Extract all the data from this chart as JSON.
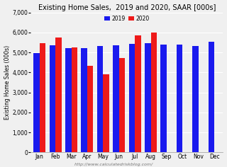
{
  "title": "Existing Home Sales,  2019 and 2020, SAAR [000s]",
  "ylabel": "Existing Home Sales (000s)",
  "watermark": "http://www.calculatedriskblog.com/",
  "months": [
    "Jan",
    "Feb",
    "Mar",
    "Apr",
    "May",
    "Jun",
    "Jul",
    "Aug",
    "Sep",
    "Oct",
    "Nov",
    "Dec"
  ],
  "data_2019": [
    4980,
    5360,
    5210,
    5210,
    5340,
    5360,
    5420,
    5450,
    5380,
    5380,
    5330,
    5540
  ],
  "data_2020": [
    5460,
    5760,
    5270,
    4330,
    3910,
    4720,
    5860,
    6000,
    null,
    null,
    null,
    null
  ],
  "color_2019": "#1a1aee",
  "color_2020": "#ee1a1a",
  "ylim": [
    0,
    7000
  ],
  "yticks": [
    0,
    1000,
    2000,
    3000,
    4000,
    5000,
    6000,
    7000
  ],
  "legend_labels": [
    "2019",
    "2020"
  ],
  "background_color": "#f0f0f0",
  "plot_bg_color": "#f0f0f0",
  "grid_color": "#ffffff",
  "title_fontsize": 7,
  "axis_fontsize": 5.5,
  "tick_fontsize": 5.5,
  "bar_width": 0.38
}
